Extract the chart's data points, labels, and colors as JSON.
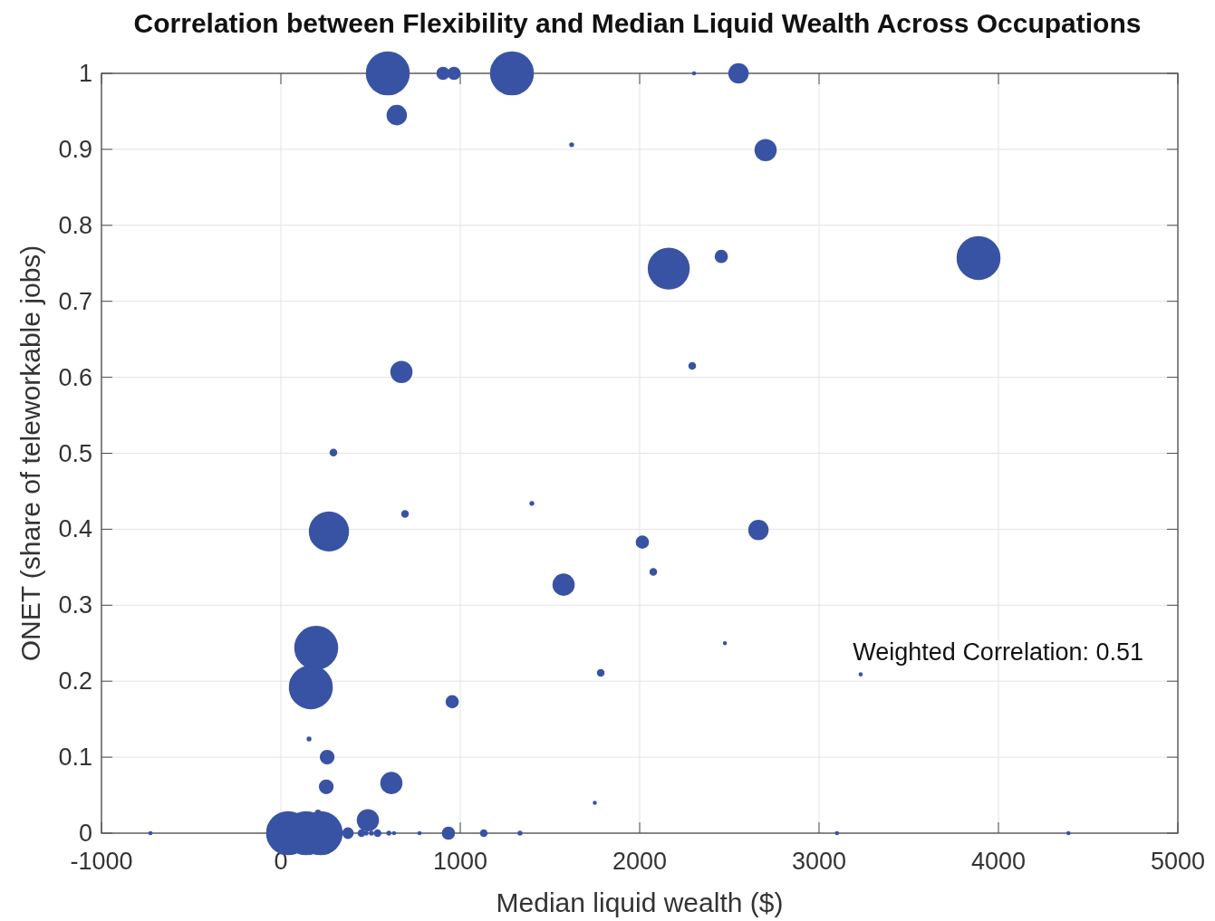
{
  "chart_data": {
    "type": "bubble",
    "title": "Correlation between Flexibility and Median Liquid Wealth Across Occupations",
    "xlabel": "Median liquid wealth ($)",
    "ylabel": "ONET (share of teleworkable jobs)",
    "annotations": [
      "Weighted Correlation: 0.51"
    ],
    "xlim": [
      -1000,
      5000
    ],
    "xticks": [
      -1000,
      0,
      1000,
      2000,
      3000,
      4000,
      5000
    ],
    "ylim": [
      0,
      1
    ],
    "yticks": [
      0,
      0.1,
      0.2,
      0.3,
      0.4,
      0.5,
      0.6,
      0.7,
      0.8,
      0.9,
      1
    ],
    "grid": true,
    "marker": "circle",
    "series": [
      {
        "color": "#3953a4",
        "x": [
          596,
          904,
          965,
          1288,
          2303,
          2551,
          646,
          1621,
          2702,
          3889,
          2162,
          2455,
          672,
          2293,
          293,
          1399,
          692,
          268,
          2662,
          2015,
          2076,
          1576,
          197,
          167,
          2475,
          3232,
          1783,
          955,
          157,
          258,
          253,
          616,
          1750,
          485,
          207,
          -727,
          40,
          141,
          222,
          374,
          449,
          475,
          505,
          539,
          602,
          631,
          773,
          934,
          1131,
          1333,
          3100,
          4390
        ],
        "values": [
          1.0,
          1.0,
          1.0,
          1.0,
          1.0,
          1.0,
          0.945,
          0.906,
          0.899,
          0.757,
          0.743,
          0.759,
          0.607,
          0.615,
          0.501,
          0.434,
          0.42,
          0.397,
          0.399,
          0.383,
          0.344,
          0.327,
          0.244,
          0.192,
          0.25,
          0.209,
          0.211,
          0.173,
          0.124,
          0.1,
          0.061,
          0.066,
          0.04,
          0.017,
          0.027,
          0,
          0,
          0,
          0,
          0,
          0,
          0,
          0,
          0,
          0,
          0,
          0,
          0,
          0,
          0,
          0,
          0
        ],
        "sizes": [
          1,
          0.07,
          0.07,
          1,
          0.002,
          0.19,
          0.19,
          0.004,
          0.23,
          1,
          0.91,
          0.07,
          0.23,
          0.017,
          0.017,
          0.004,
          0.017,
          0.83,
          0.19,
          0.07,
          0.017,
          0.23,
          1,
          1,
          0.002,
          0.002,
          0.017,
          0.07,
          0.004,
          0.09,
          0.09,
          0.23,
          0.002,
          0.23,
          0.008,
          0.002,
          1,
          1,
          1,
          0.05,
          0.017,
          0.004,
          0.004,
          0.017,
          0.004,
          0.002,
          0.002,
          0.07,
          0.017,
          0.004,
          0.002,
          0.002
        ]
      }
    ]
  }
}
